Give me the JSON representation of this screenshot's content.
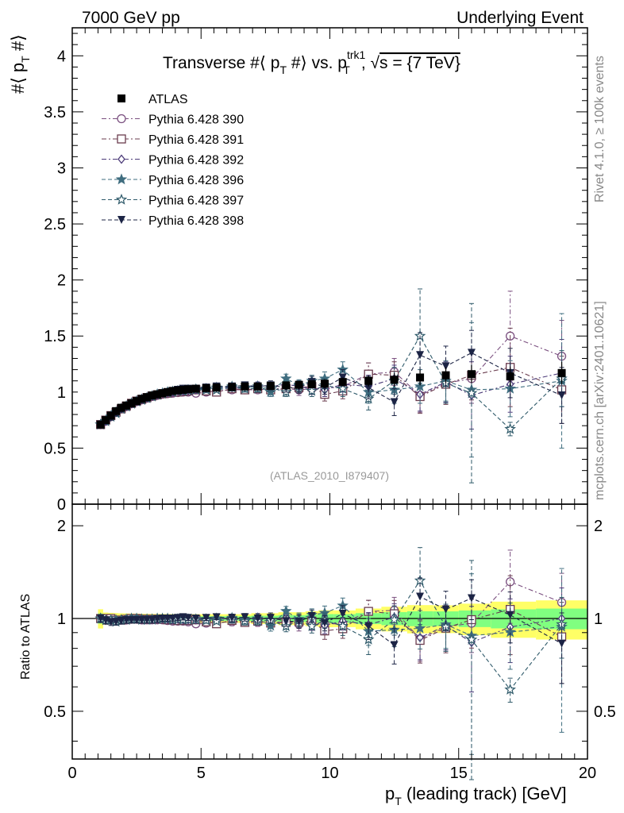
{
  "header": {
    "left": "7000 GeV pp",
    "right": "Underlying Event"
  },
  "side_labels": {
    "rivet": "Rivet 4.1.0, ≥ 100k events",
    "mcplots": "mcplots.cern.ch [arXiv:2401.10621]"
  },
  "chart_data": {
    "type": "scatter",
    "title": "Transverse #⟨ p_T #⟩ vs. p_T^trk1, √s = {7 TeV}",
    "title_parts": {
      "t1": "Transverse #⟨ p",
      "s1": "T",
      "t2": " #⟩ vs. p",
      "sup": "trk1",
      "sub2": "T",
      "t3": ", √",
      "t4": "s = {7 TeV}"
    },
    "ylabel": {
      "main": "#⟨ p",
      "sub": "T",
      "end": " #⟩"
    },
    "xlabel": {
      "main": "p",
      "sub": "T",
      "end": " (leading track) [GeV]"
    },
    "ratio_ylabel": "Ratio to ATLAS",
    "analysis_label": "(ATLAS_2010_I879407)",
    "xlim": [
      0,
      20
    ],
    "ylim": [
      0,
      4.25
    ],
    "ratio_ylim": [
      0.35,
      2.35
    ],
    "x_ticks": [
      "0",
      "5",
      "10",
      "15",
      "20"
    ],
    "y_ticks": [
      "0",
      "0.5",
      "1",
      "1.5",
      "2",
      "2.5",
      "3",
      "3.5",
      "4"
    ],
    "ratio_ticks": [
      "0.5",
      "1",
      "2"
    ],
    "x": [
      1.1,
      1.3,
      1.5,
      1.7,
      1.9,
      2.1,
      2.3,
      2.5,
      2.7,
      2.9,
      3.1,
      3.3,
      3.5,
      3.7,
      3.9,
      4.1,
      4.3,
      4.5,
      4.8,
      5.2,
      5.6,
      6.2,
      6.7,
      7.2,
      7.7,
      8.3,
      8.8,
      9.3,
      9.8,
      10.5,
      11.5,
      12.5,
      13.5,
      14.5,
      15.5,
      17.0,
      19.0
    ],
    "data": {
      "name": "ATLAS",
      "values": [
        0.71,
        0.75,
        0.79,
        0.83,
        0.86,
        0.88,
        0.9,
        0.92,
        0.94,
        0.955,
        0.97,
        0.98,
        0.99,
        1.0,
        1.01,
        1.015,
        1.02,
        1.025,
        1.03,
        1.035,
        1.04,
        1.045,
        1.05,
        1.05,
        1.055,
        1.06,
        1.065,
        1.07,
        1.075,
        1.09,
        1.1,
        1.11,
        1.13,
        1.15,
        1.16,
        1.14,
        1.17
      ],
      "errors": [
        0.03,
        0.02,
        0.02,
        0.02,
        0.02,
        0.02,
        0.02,
        0.02,
        0.02,
        0.02,
        0.02,
        0.02,
        0.02,
        0.02,
        0.02,
        0.02,
        0.02,
        0.02,
        0.02,
        0.02,
        0.02,
        0.02,
        0.02,
        0.025,
        0.025,
        0.03,
        0.03,
        0.035,
        0.04,
        0.04,
        0.05,
        0.06,
        0.07,
        0.07,
        0.08,
        0.09,
        0.1
      ],
      "color": "#000000"
    },
    "series": [
      {
        "name": "Pythia 6.428 390",
        "marker": "circle",
        "dash": "dashdot",
        "color": "#7a4f7f",
        "values": [
          0.71,
          0.74,
          0.78,
          0.82,
          0.85,
          0.87,
          0.895,
          0.915,
          0.93,
          0.945,
          0.96,
          0.97,
          0.98,
          0.985,
          0.99,
          0.995,
          1.0,
          1.0,
          0.99,
          1.0,
          1.01,
          1.02,
          1.02,
          1.02,
          1.03,
          1.03,
          1.02,
          1.03,
          1.03,
          1.05,
          1.16,
          1.18,
          0.97,
          1.08,
          1.12,
          1.5,
          1.32
        ],
        "errors": [
          0.02,
          0.02,
          0.02,
          0.02,
          0.02,
          0.02,
          0.02,
          0.02,
          0.02,
          0.02,
          0.02,
          0.02,
          0.02,
          0.02,
          0.02,
          0.02,
          0.02,
          0.02,
          0.02,
          0.02,
          0.02,
          0.03,
          0.03,
          0.03,
          0.04,
          0.04,
          0.05,
          0.05,
          0.06,
          0.07,
          0.1,
          0.12,
          0.15,
          0.18,
          0.22,
          0.4,
          0.32
        ]
      },
      {
        "name": "Pythia 6.428 391",
        "marker": "square",
        "dash": "dashdot",
        "color": "#6b3d4f",
        "values": [
          0.71,
          0.75,
          0.79,
          0.82,
          0.85,
          0.875,
          0.9,
          0.92,
          0.935,
          0.95,
          0.965,
          0.975,
          0.985,
          0.99,
          1.0,
          1.0,
          1.005,
          1.01,
          1.02,
          1.01,
          1.0,
          1.03,
          1.02,
          1.03,
          1.02,
          1.03,
          1.04,
          1.05,
          0.98,
          1.01,
          1.16,
          1.15,
          0.96,
          1.07,
          1.15,
          1.22,
          1.02
        ],
        "errors": [
          0.02,
          0.02,
          0.02,
          0.02,
          0.02,
          0.02,
          0.02,
          0.02,
          0.02,
          0.02,
          0.02,
          0.02,
          0.02,
          0.02,
          0.02,
          0.02,
          0.02,
          0.02,
          0.02,
          0.02,
          0.02,
          0.03,
          0.03,
          0.03,
          0.04,
          0.04,
          0.05,
          0.05,
          0.06,
          0.07,
          0.1,
          0.12,
          0.15,
          0.18,
          0.22,
          0.35,
          0.3
        ]
      },
      {
        "name": "Pythia 6.428 392",
        "marker": "diamond",
        "dash": "dashdot",
        "color": "#4b3a78",
        "values": [
          0.71,
          0.74,
          0.78,
          0.82,
          0.85,
          0.875,
          0.9,
          0.92,
          0.935,
          0.95,
          0.965,
          0.975,
          0.99,
          0.995,
          1.0,
          1.01,
          1.01,
          1.015,
          1.02,
          1.03,
          1.04,
          1.04,
          1.04,
          1.06,
          1.05,
          1.07,
          1.05,
          1.03,
          1.02,
          1.07,
          1.05,
          1.12,
          0.98,
          1.09,
          0.97,
          1.07,
          1.17
        ],
        "errors": [
          0.02,
          0.02,
          0.02,
          0.02,
          0.02,
          0.02,
          0.02,
          0.02,
          0.02,
          0.02,
          0.02,
          0.02,
          0.02,
          0.02,
          0.02,
          0.02,
          0.02,
          0.02,
          0.02,
          0.02,
          0.02,
          0.03,
          0.03,
          0.03,
          0.04,
          0.04,
          0.05,
          0.05,
          0.06,
          0.07,
          0.1,
          0.12,
          0.15,
          0.18,
          0.3,
          0.25,
          0.3
        ]
      },
      {
        "name": "Pythia 6.428 396",
        "marker": "star-filled",
        "dash": "dashed",
        "color": "#3f6d7f",
        "values": [
          0.71,
          0.74,
          0.78,
          0.82,
          0.85,
          0.875,
          0.9,
          0.92,
          0.935,
          0.95,
          0.965,
          0.98,
          0.99,
          1.0,
          1.005,
          1.01,
          1.015,
          1.02,
          1.025,
          1.03,
          1.04,
          1.05,
          1.04,
          1.05,
          1.0,
          1.12,
          1.06,
          1.1,
          1.12,
          1.2,
          1.0,
          1.02,
          1.05,
          1.1,
          1.02,
          1.03,
          1.1
        ],
        "errors": [
          0.02,
          0.02,
          0.02,
          0.02,
          0.02,
          0.02,
          0.02,
          0.02,
          0.02,
          0.02,
          0.02,
          0.02,
          0.02,
          0.02,
          0.02,
          0.02,
          0.02,
          0.02,
          0.02,
          0.02,
          0.02,
          0.03,
          0.03,
          0.03,
          0.04,
          0.04,
          0.05,
          0.05,
          0.06,
          0.07,
          0.1,
          0.12,
          0.15,
          0.18,
          0.6,
          0.25,
          0.6
        ]
      },
      {
        "name": "Pythia 6.428 397",
        "marker": "star-open",
        "dash": "dashed",
        "color": "#2f5a6a",
        "values": [
          0.71,
          0.74,
          0.78,
          0.81,
          0.85,
          0.87,
          0.895,
          0.915,
          0.93,
          0.945,
          0.96,
          0.975,
          0.985,
          0.995,
          1.0,
          1.01,
          1.01,
          1.015,
          1.02,
          1.02,
          1.02,
          1.04,
          1.03,
          1.03,
          1.04,
          1.0,
          1.05,
          1.01,
          1.06,
          1.03,
          0.94,
          1.1,
          1.5,
          1.08,
          0.99,
          0.67,
          1.12
        ],
        "errors": [
          0.02,
          0.02,
          0.02,
          0.02,
          0.02,
          0.02,
          0.02,
          0.02,
          0.02,
          0.02,
          0.02,
          0.02,
          0.02,
          0.02,
          0.02,
          0.02,
          0.02,
          0.02,
          0.02,
          0.02,
          0.02,
          0.03,
          0.03,
          0.03,
          0.04,
          0.04,
          0.05,
          0.05,
          0.06,
          0.07,
          0.1,
          0.12,
          0.42,
          0.18,
          0.8,
          0.06,
          0.25
        ]
      },
      {
        "name": "Pythia 6.428 398",
        "marker": "triangle-down",
        "dash": "dashed",
        "color": "#1c2445",
        "values": [
          0.71,
          0.74,
          0.77,
          0.81,
          0.845,
          0.87,
          0.89,
          0.91,
          0.93,
          0.945,
          0.96,
          0.975,
          0.99,
          1.0,
          1.01,
          1.02,
          1.03,
          1.03,
          1.03,
          1.04,
          1.05,
          1.05,
          1.06,
          1.05,
          1.06,
          1.04,
          1.04,
          1.09,
          1.04,
          1.13,
          1.04,
          0.91,
          1.33,
          1.23,
          1.35,
          1.17,
          0.97
        ],
        "errors": [
          0.02,
          0.02,
          0.02,
          0.02,
          0.02,
          0.02,
          0.02,
          0.02,
          0.02,
          0.02,
          0.02,
          0.02,
          0.02,
          0.02,
          0.02,
          0.02,
          0.02,
          0.02,
          0.02,
          0.02,
          0.02,
          0.03,
          0.03,
          0.03,
          0.04,
          0.04,
          0.05,
          0.05,
          0.06,
          0.07,
          0.1,
          0.12,
          0.2,
          0.18,
          0.2,
          0.22,
          0.25
        ]
      }
    ],
    "band_colors": {
      "inner": "#80ff80",
      "outer": "#ffff66"
    }
  }
}
